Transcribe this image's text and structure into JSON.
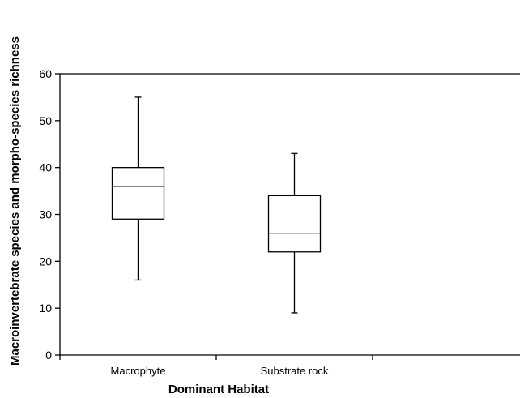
{
  "chart_data": {
    "type": "box",
    "xlabel": "Dominant Habitat",
    "ylabel": "Macroinvertebrate species and morpho-species richness",
    "ylim": [
      0,
      60
    ],
    "yticks": [
      0,
      10,
      20,
      30,
      40,
      50,
      60
    ],
    "grid": false,
    "legend": "none",
    "categories": [
      "Macrophyte",
      "Substrate rock",
      ""
    ],
    "boxes": [
      {
        "category": "Macrophyte",
        "min": 16,
        "q1": 29,
        "median": 36,
        "q3": 40,
        "max": 55
      },
      {
        "category": "Substrate rock",
        "min": 9,
        "q1": 22,
        "median": 26,
        "q3": 34,
        "max": 43
      }
    ]
  }
}
